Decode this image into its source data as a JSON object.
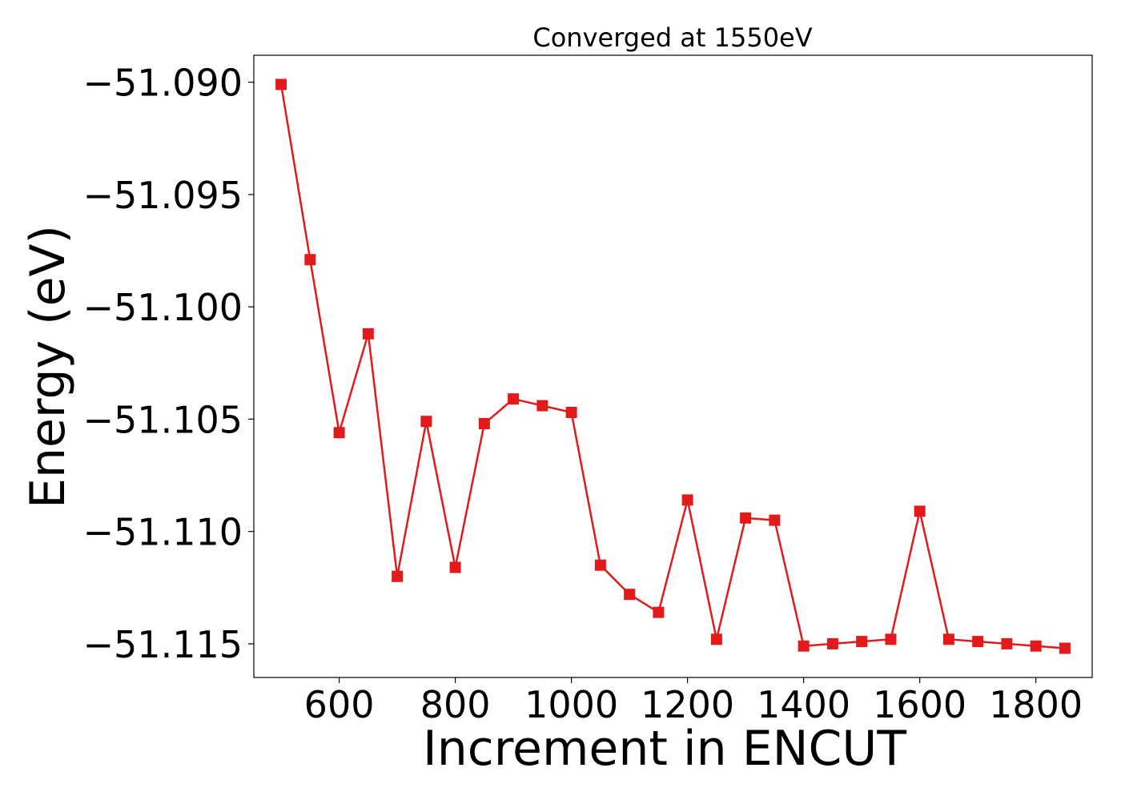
{
  "chart_data": {
    "type": "line",
    "title": "Converged at 1550eV",
    "xlabel": "Increment in ENCUT",
    "ylabel": "Energy (eV)",
    "xlim": [
      453,
      1897
    ],
    "ylim": [
      -51.1165,
      -51.0888
    ],
    "x_ticks": [
      600,
      800,
      1000,
      1200,
      1400,
      1600,
      1800
    ],
    "x_tick_labels": [
      "600",
      "800",
      "1000",
      "1200",
      "1400",
      "1600",
      "1800"
    ],
    "y_ticks": [
      -51.09,
      -51.095,
      -51.1,
      -51.105,
      -51.11,
      -51.115
    ],
    "y_tick_labels": [
      "−51.090",
      "−51.095",
      "−51.100",
      "−51.105",
      "−51.110",
      "−51.115"
    ],
    "grid": false,
    "legend": false,
    "series": [
      {
        "color": "#e31a1c",
        "marker": "square",
        "x": [
          500,
          550,
          600,
          650,
          700,
          750,
          800,
          850,
          900,
          950,
          1000,
          1050,
          1100,
          1150,
          1200,
          1250,
          1300,
          1350,
          1400,
          1450,
          1500,
          1550,
          1600,
          1650,
          1700,
          1750,
          1800,
          1850
        ],
        "y": [
          -51.0901,
          -51.0979,
          -51.1056,
          -51.1012,
          -51.112,
          -51.1051,
          -51.1116,
          -51.1052,
          -51.1041,
          -51.1044,
          -51.1047,
          -51.1115,
          -51.1128,
          -51.1136,
          -51.1086,
          -51.1148,
          -51.1094,
          -51.1095,
          -51.1151,
          -51.115,
          -51.1149,
          -51.1148,
          -51.1091,
          -51.1148,
          -51.1149,
          -51.115,
          -51.1151,
          -51.1152
        ]
      }
    ]
  }
}
